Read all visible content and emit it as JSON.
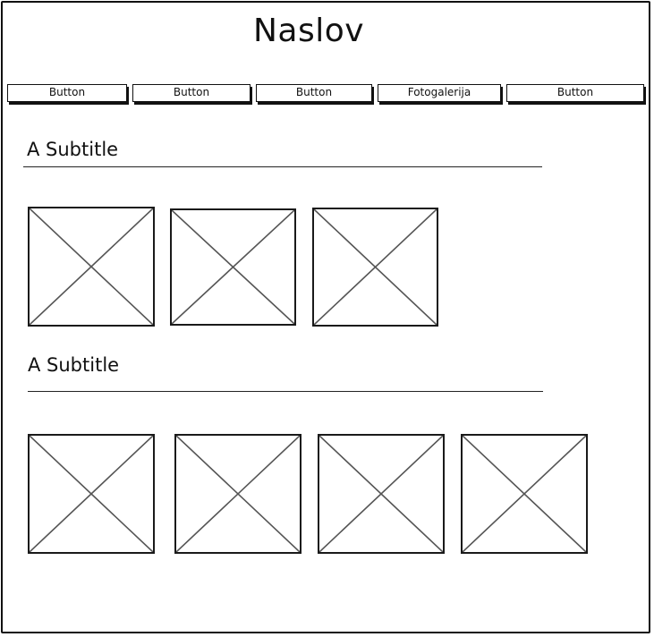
{
  "page": {
    "title": "Naslov"
  },
  "nav": {
    "buttons": [
      {
        "label": "Button"
      },
      {
        "label": "Button"
      },
      {
        "label": "Button"
      },
      {
        "label": "Fotogalerija"
      },
      {
        "label": "Button"
      }
    ]
  },
  "sections": [
    {
      "subtitle": "A Subtitle",
      "image_count": 3
    },
    {
      "subtitle": "A Subtitle",
      "image_count": 4
    }
  ]
}
